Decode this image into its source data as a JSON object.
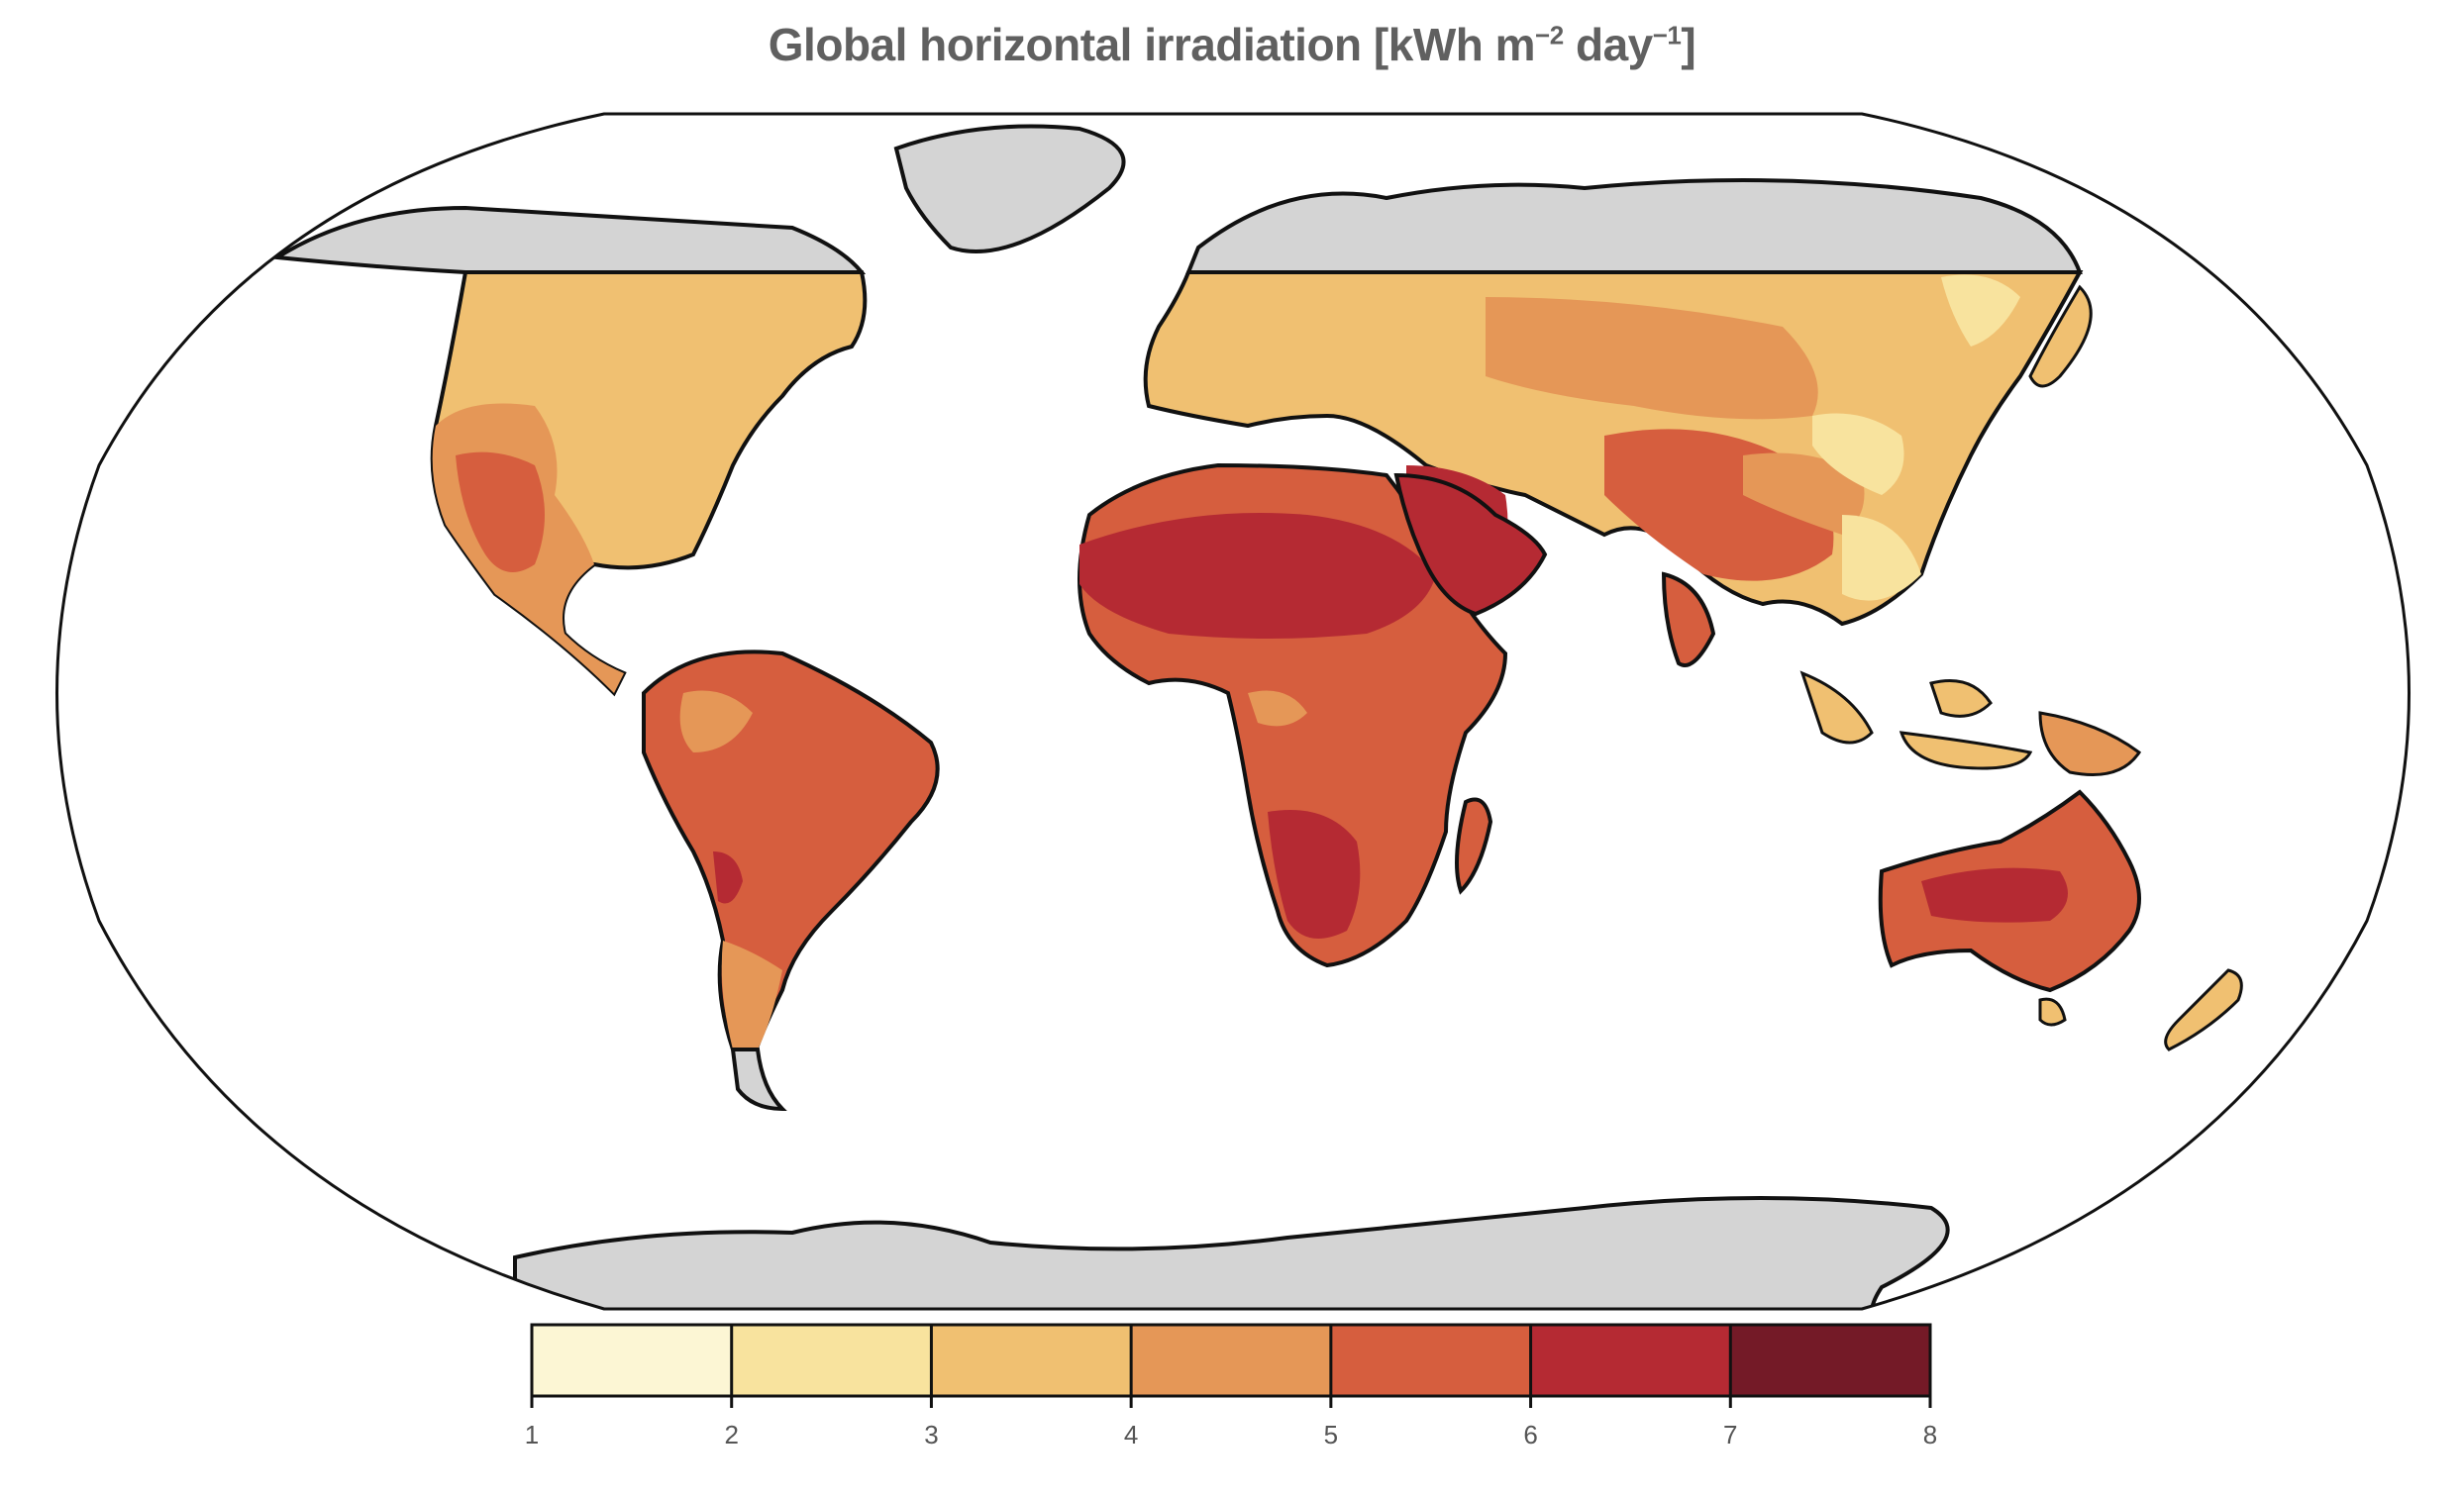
{
  "title": {
    "main": "Global horizontal irradiation [kWh m",
    "exp1": "−2",
    "mid": " day",
    "exp2": "−1",
    "end": "]"
  },
  "colorbar": {
    "min": 1,
    "max": 8,
    "ticks": [
      "1",
      "2",
      "3",
      "4",
      "5",
      "6",
      "7",
      "8"
    ],
    "bins": [
      {
        "from": 1,
        "to": 2,
        "color": "#fcf6d4"
      },
      {
        "from": 2,
        "to": 3,
        "color": "#f8e39e"
      },
      {
        "from": 3,
        "to": 4,
        "color": "#f0c071"
      },
      {
        "from": 4,
        "to": 5,
        "color": "#e59757"
      },
      {
        "from": 5,
        "to": 6,
        "color": "#d65e3e"
      },
      {
        "from": 6,
        "to": 7,
        "color": "#b52a33"
      },
      {
        "from": 7,
        "to": 8,
        "color": "#741a27"
      }
    ]
  },
  "colors": {
    "no_data": "#d4d4d4",
    "ocean": "#ffffff",
    "coast": "#111111"
  }
}
